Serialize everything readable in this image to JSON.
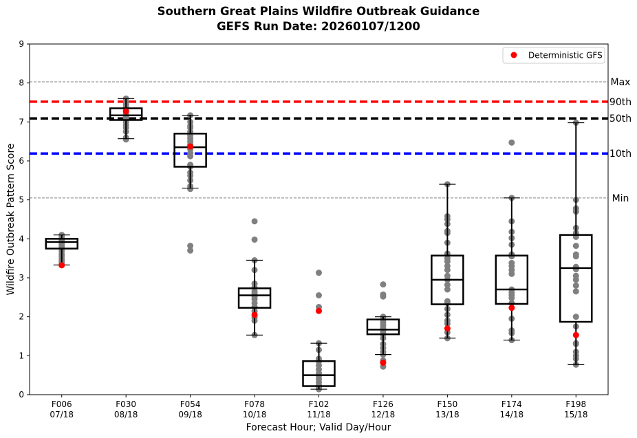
{
  "chart_data": {
    "type": "box",
    "title": "Southern Great Plains Wildfire Outbreak Guidance",
    "subtitle": "GEFS Run Date: 20260107/1200",
    "xlabel": "Forecast Hour; Valid Day/Hour",
    "ylabel": "Wildfire Outbreak Pattern Score",
    "ylim": [
      0,
      9
    ],
    "yticks": [
      "0",
      "1",
      "2",
      "3",
      "4",
      "5",
      "6",
      "7",
      "8",
      "9"
    ],
    "legend": {
      "label": "Deterministic GFS",
      "placement": "top-right",
      "color": "#ff0000"
    },
    "reference_lines": [
      {
        "label": "Max",
        "value": 8.03,
        "color": "#808080",
        "style": "thin"
      },
      {
        "label": "90th",
        "value": 7.52,
        "color": "#ff0000",
        "style": "thick"
      },
      {
        "label": "50th",
        "value": 7.09,
        "color": "#000000",
        "style": "thick"
      },
      {
        "label": "10th",
        "value": 6.19,
        "color": "#0000ff",
        "style": "thick"
      },
      {
        "label": "Min",
        "value": 5.05,
        "color": "#808080",
        "style": "thin"
      }
    ],
    "categories": [
      {
        "hour": "F006",
        "valid": "07/18"
      },
      {
        "hour": "F030",
        "valid": "08/18"
      },
      {
        "hour": "F054",
        "valid": "09/18"
      },
      {
        "hour": "F078",
        "valid": "10/18"
      },
      {
        "hour": "F102",
        "valid": "11/18"
      },
      {
        "hour": "F126",
        "valid": "12/18"
      },
      {
        "hour": "F150",
        "valid": "13/18"
      },
      {
        "hour": "F174",
        "valid": "14/18"
      },
      {
        "hour": "F198",
        "valid": "15/18"
      }
    ],
    "boxes": [
      {
        "whislo": 3.33,
        "q1": 3.75,
        "med": 3.92,
        "q3": 4.0,
        "whishi": 4.1,
        "deterministic": 3.32,
        "members": [
          4.1,
          4.05,
          4.0,
          3.97,
          3.93,
          3.9,
          3.85,
          3.8,
          3.75,
          3.68,
          3.6,
          3.55,
          3.48,
          3.42,
          3.35
        ]
      },
      {
        "whislo": 6.57,
        "q1": 7.05,
        "med": 7.17,
        "q3": 7.35,
        "whishi": 7.6,
        "deterministic": 7.27,
        "members": [
          7.6,
          7.52,
          7.45,
          7.38,
          7.3,
          7.22,
          7.15,
          7.08,
          7.0,
          6.92,
          6.85,
          6.75,
          6.6,
          6.55
        ]
      },
      {
        "whislo": 5.3,
        "q1": 5.85,
        "med": 6.35,
        "q3": 6.7,
        "whishi": 7.17,
        "deterministic": 6.37,
        "members": [
          7.17,
          7.0,
          6.9,
          6.85,
          6.75,
          6.65,
          6.58,
          6.5,
          6.42,
          6.3,
          6.2,
          6.12,
          5.9,
          5.85,
          5.7,
          5.62,
          5.5,
          5.35,
          5.28,
          3.82,
          3.7
        ]
      },
      {
        "whislo": 1.53,
        "q1": 2.23,
        "med": 2.55,
        "q3": 2.73,
        "whishi": 3.45,
        "deterministic": 2.05,
        "members": [
          4.45,
          3.98,
          3.45,
          3.2,
          2.85,
          2.75,
          2.65,
          2.6,
          2.52,
          2.45,
          2.35,
          2.25,
          2.15,
          1.98,
          1.9,
          1.53
        ]
      },
      {
        "whislo": 0.14,
        "q1": 0.22,
        "med": 0.5,
        "q3": 0.86,
        "whishi": 1.32,
        "deterministic": 2.15,
        "members": [
          3.13,
          2.55,
          2.25,
          1.32,
          1.15,
          0.92,
          0.85,
          0.75,
          0.65,
          0.55,
          0.48,
          0.4,
          0.32,
          0.25,
          0.18,
          0.14
        ]
      },
      {
        "whislo": 1.03,
        "q1": 1.55,
        "med": 1.67,
        "q3": 1.93,
        "whishi": 2.0,
        "deterministic": 0.82,
        "members": [
          2.83,
          2.57,
          2.52,
          2.0,
          1.92,
          1.85,
          1.78,
          1.7,
          1.62,
          1.55,
          1.45,
          1.3,
          1.2,
          1.1,
          1.03,
          0.88,
          0.72
        ]
      },
      {
        "whislo": 1.45,
        "q1": 2.32,
        "med": 2.95,
        "q3": 3.57,
        "whishi": 5.4,
        "deterministic": 1.7,
        "members": [
          5.4,
          4.58,
          4.5,
          4.38,
          4.2,
          4.15,
          3.9,
          3.62,
          3.5,
          3.42,
          3.3,
          3.2,
          3.05,
          2.95,
          2.82,
          2.7,
          2.4,
          2.35,
          2.2,
          2.05,
          1.9,
          1.82,
          1.6,
          1.45
        ]
      },
      {
        "whislo": 1.4,
        "q1": 2.33,
        "med": 2.7,
        "q3": 3.57,
        "whishi": 5.05,
        "deterministic": 2.23,
        "members": [
          6.47,
          5.05,
          4.45,
          4.18,
          4.02,
          3.85,
          3.6,
          3.55,
          3.38,
          3.3,
          3.2,
          3.1,
          2.7,
          2.62,
          2.55,
          2.48,
          2.35,
          1.95,
          1.65,
          1.58,
          1.4
        ]
      },
      {
        "whislo": 0.77,
        "q1": 1.87,
        "med": 3.25,
        "q3": 4.1,
        "whishi": 6.98,
        "deterministic": 1.53,
        "members": [
          6.98,
          5.0,
          4.78,
          4.7,
          4.28,
          4.15,
          4.05,
          3.82,
          3.6,
          3.55,
          3.28,
          3.22,
          3.05,
          2.95,
          2.8,
          2.65,
          2.0,
          1.75,
          1.32,
          1.3,
          1.1,
          1.0,
          0.92,
          0.77
        ]
      }
    ]
  }
}
